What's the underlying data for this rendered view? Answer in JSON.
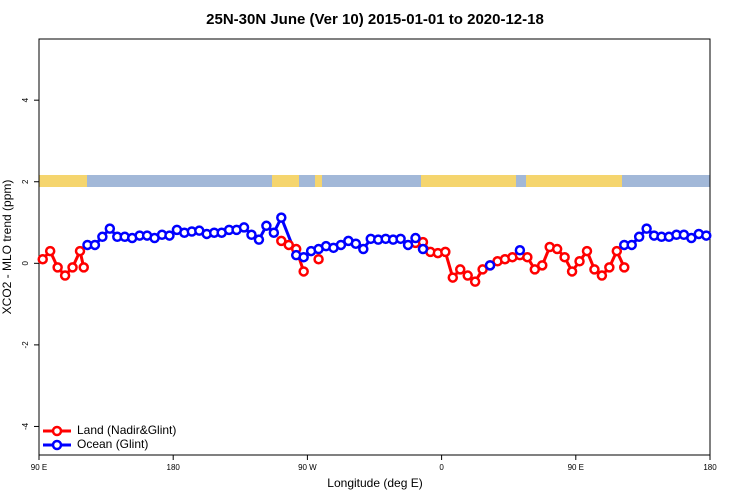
{
  "chart_data": {
    "type": "line",
    "title": "25N-30N June (Ver 10)   2015-01-01 to 2020-12-18",
    "xlabel": "Longitude (deg E)",
    "ylabel": "XCO2 - MLO trend (ppm)",
    "xlim": [
      90,
      540
    ],
    "xticks": [
      {
        "value": 90,
        "label": "90 E"
      },
      {
        "value": 180,
        "label": "180"
      },
      {
        "value": 270,
        "label": "90 W"
      },
      {
        "value": 360,
        "label": "0"
      },
      {
        "value": 450,
        "label": "90 E"
      },
      {
        "value": 540,
        "label": "180"
      }
    ],
    "ylim": [
      -4.7,
      5.5
    ],
    "yticks": [
      -4,
      -2,
      0,
      2,
      4
    ],
    "legend": "lower left",
    "series": [
      {
        "name": "Land (Nadir&Glint)",
        "color": "#ff0000",
        "x": [
          92.5,
          97.5,
          102.5,
          107.5,
          112.5,
          117.5,
          120,
          null,
          252.5,
          257.5,
          262.5,
          267.5,
          null,
          277.5,
          null,
          342.5,
          347.5,
          352.5,
          357.5,
          362.5,
          367.5,
          372.5,
          377.5,
          382.5,
          387.5,
          392.5,
          397.5,
          402.5,
          407.5,
          412.5,
          417.5,
          422.5,
          427.5,
          432.5,
          437.5,
          442.5,
          447.5,
          452.5,
          457.5,
          462.5,
          467.5,
          472.5,
          477.5,
          482.5
        ],
        "values": [
          0.1,
          0.3,
          -0.1,
          -0.3,
          -0.1,
          0.3,
          -0.1,
          null,
          0.55,
          0.45,
          0.35,
          -0.2,
          null,
          0.1,
          null,
          0.5,
          0.52,
          0.28,
          0.25,
          0.28,
          -0.35,
          -0.15,
          -0.3,
          -0.45,
          -0.15,
          -0.05,
          0.05,
          0.1,
          0.15,
          0.2,
          0.15,
          -0.15,
          -0.05,
          0.4,
          0.35,
          0.15,
          -0.2,
          0.05,
          0.3,
          -0.15,
          -0.3,
          -0.1,
          0.3,
          -0.1
        ]
      },
      {
        "name": "Ocean (Glint)",
        "color": "#0000ff",
        "x": [
          122.5,
          127.5,
          132.5,
          137.5,
          142.5,
          147.5,
          152.5,
          157.5,
          162.5,
          167.5,
          172.5,
          177.5,
          182.5,
          187.5,
          192.5,
          197.5,
          202.5,
          207.5,
          212.5,
          217.5,
          222.5,
          227.5,
          232.5,
          237.5,
          242.5,
          247.5,
          252.5,
          262.5,
          267.5,
          272.5,
          277.5,
          282.5,
          287.5,
          292.5,
          297.5,
          302.5,
          307.5,
          312.5,
          317.5,
          322.5,
          327.5,
          332.5,
          337.5,
          342.5,
          347.5,
          null,
          392.5,
          null,
          412.5,
          null,
          482.5,
          487.5,
          492.5,
          497.5,
          502.5,
          507.5,
          512.5,
          517.5,
          522.5,
          527.5,
          532.5,
          537.5
        ],
        "values": [
          0.45,
          0.45,
          0.65,
          0.85,
          0.65,
          0.65,
          0.62,
          0.68,
          0.68,
          0.62,
          0.7,
          0.68,
          0.82,
          0.75,
          0.78,
          0.8,
          0.72,
          0.75,
          0.75,
          0.82,
          0.82,
          0.88,
          0.7,
          0.58,
          0.92,
          0.75,
          1.12,
          0.2,
          0.15,
          0.3,
          0.35,
          0.42,
          0.38,
          0.45,
          0.55,
          0.48,
          0.35,
          0.6,
          0.58,
          0.6,
          0.58,
          0.6,
          0.45,
          0.62,
          0.35,
          null,
          -0.05,
          null,
          0.32,
          null,
          0.45,
          0.45,
          0.65,
          0.85,
          0.68,
          0.65,
          0.65,
          0.7,
          0.7,
          0.62,
          0.72,
          0.68
        ]
      }
    ]
  }
}
